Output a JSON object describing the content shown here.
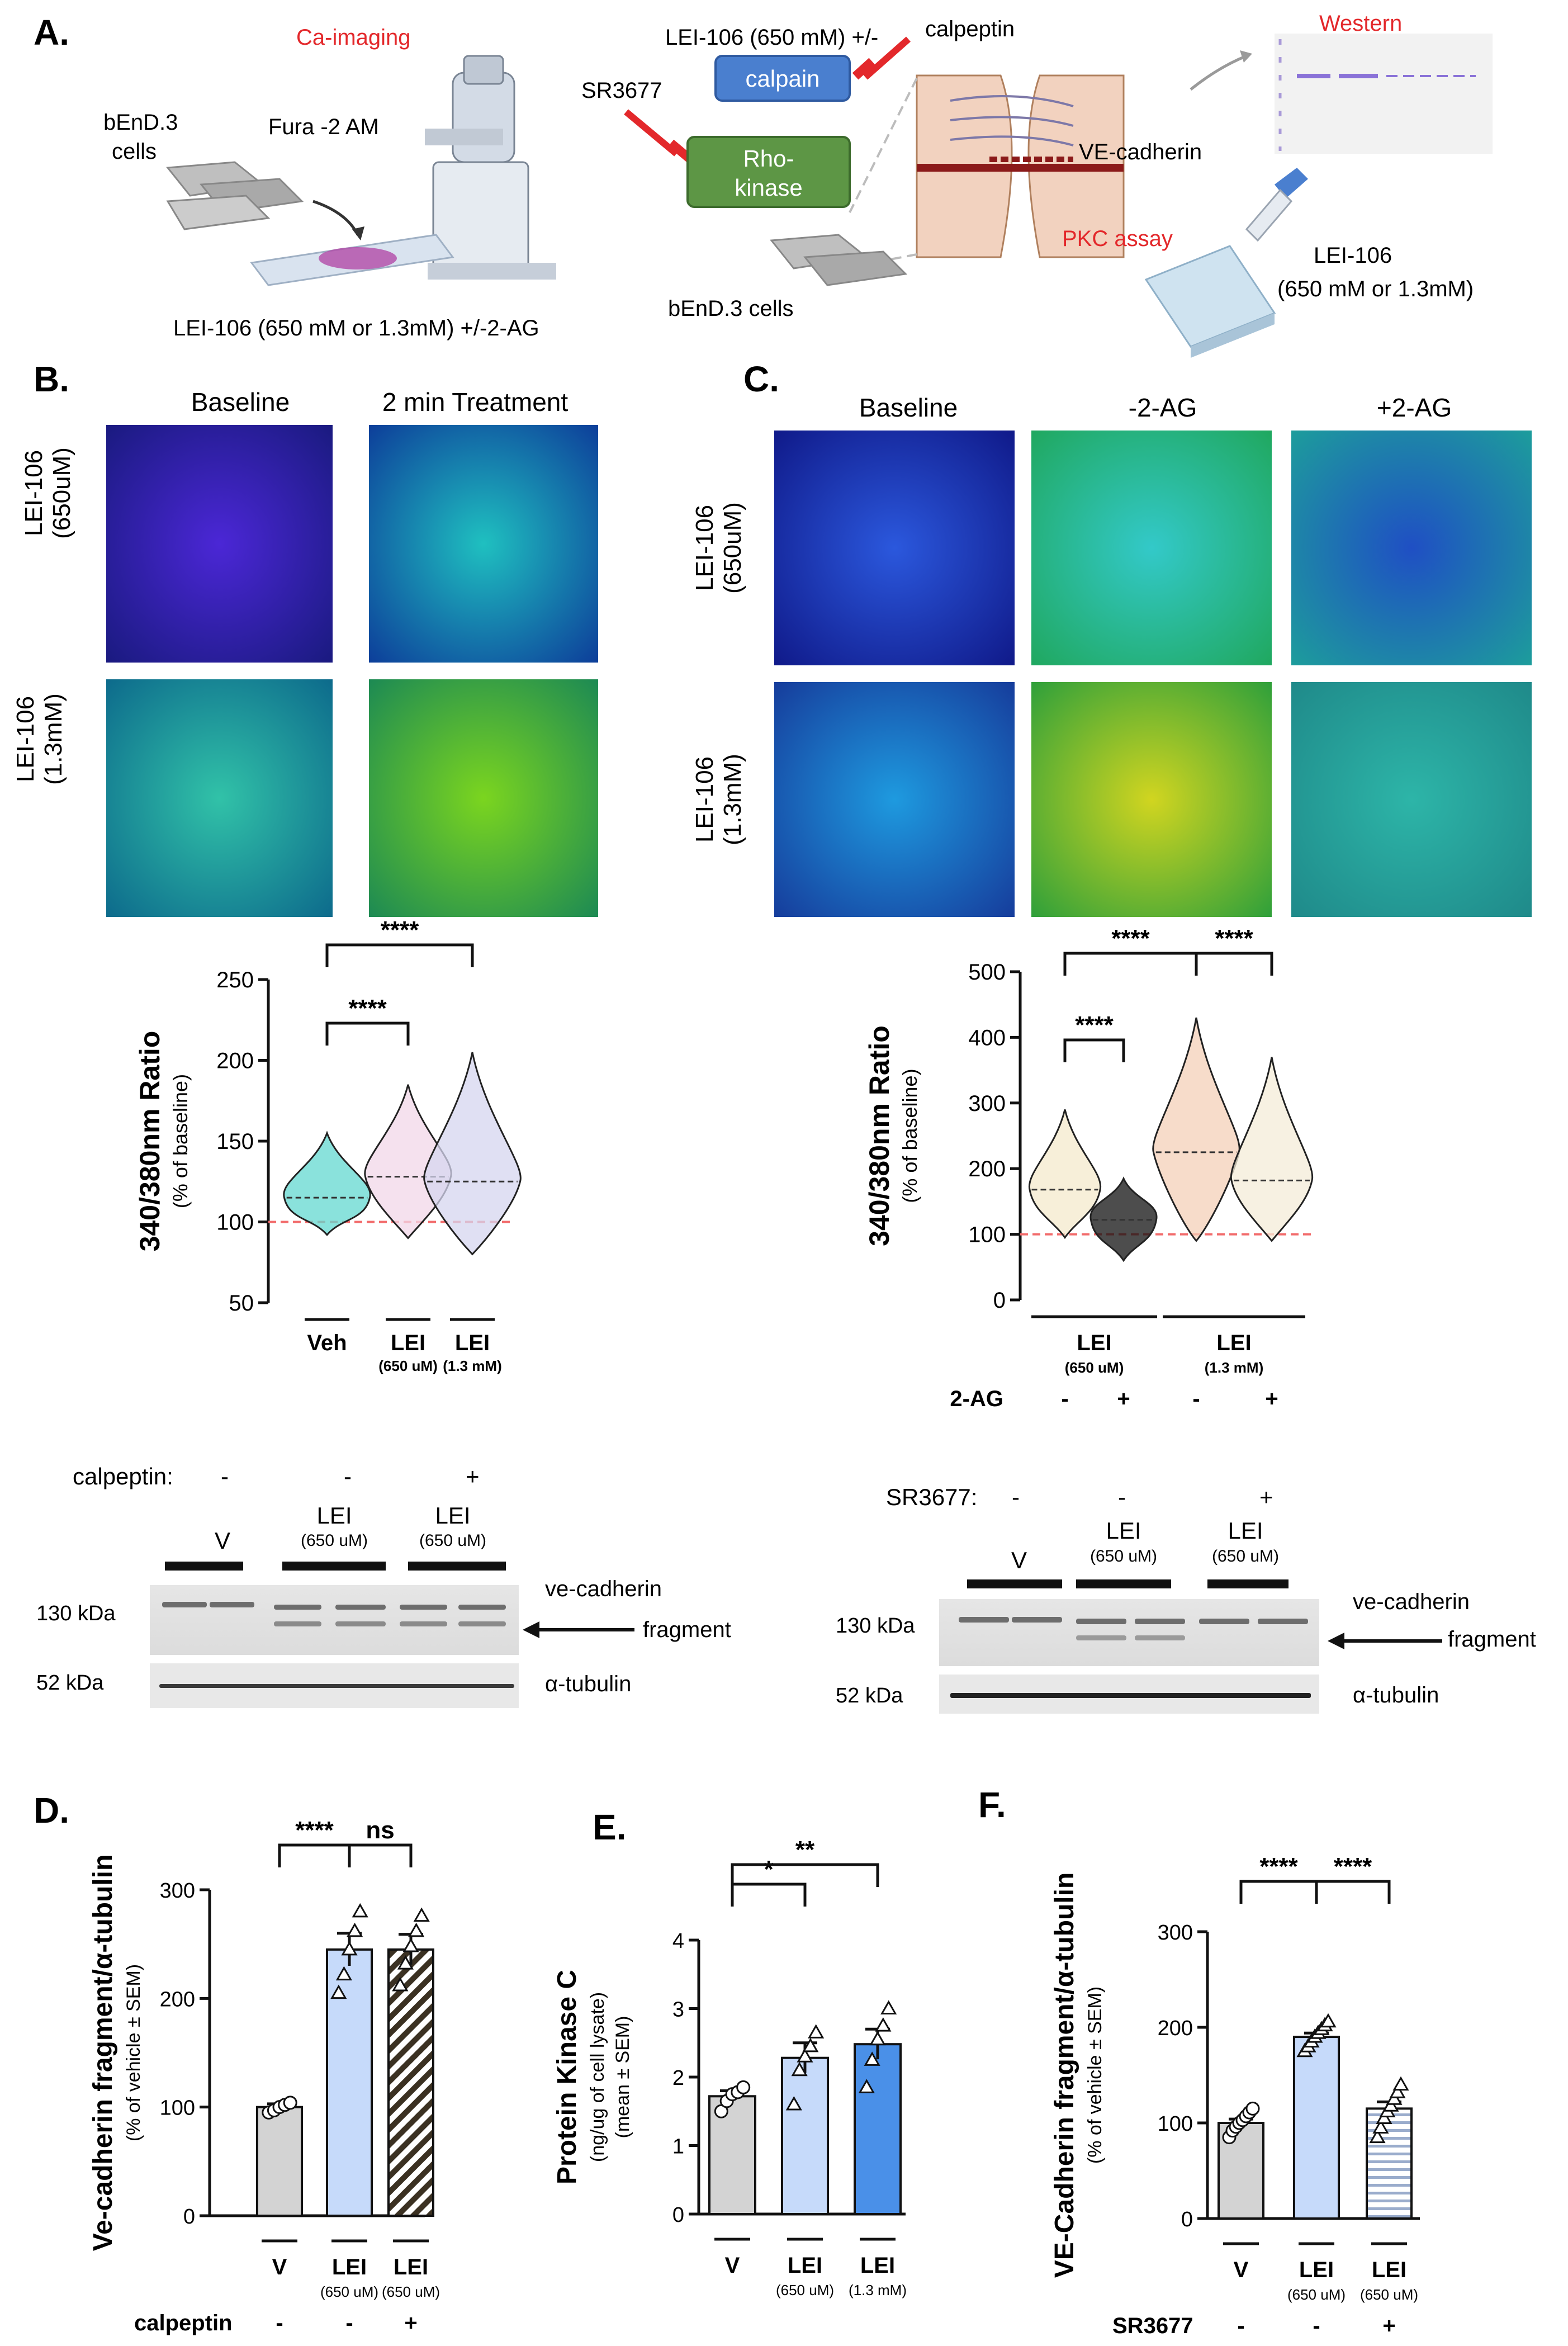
{
  "panelA": {
    "letter": "A.",
    "ca_imaging": "Ca-imaging",
    "bend_cells_l1": "bEnD.3",
    "bend_cells_l2": "cells",
    "fura": "Fura -2 AM",
    "lei_caption_left": "LEI-106 (650  mM or 1.3mM) +/-2-AG",
    "lei_top": "LEI-106 (650  mM) +/-",
    "calpain": "calpain",
    "calpeptin": "calpeptin",
    "sr3677": "SR3677",
    "rho_l1": "Rho-",
    "rho_l2": "kinase",
    "ve_cadherin": "VE-cadherin",
    "western": "Western",
    "pkc_assay": "PKC assay",
    "lei_right_l1": "LEI-106",
    "lei_right_l2": "(650  mM or 1.3mM)",
    "bend_cells_bottom": "bEnD.3 cells"
  },
  "panelB": {
    "letter": "B.",
    "col1": "Baseline",
    "col2": "2 min Treatment",
    "row1_l1": "LEI-106",
    "row1_l2": "(650uM)",
    "row2_l1": "LEI-106",
    "row2_l2": "(1.3mM)"
  },
  "panelC": {
    "letter": "C.",
    "col1": "Baseline",
    "col2": "-2-AG",
    "col3": "+2-AG",
    "row1_l1": "LEI-106",
    "row1_l2": "(650uM)",
    "row2_l1": "LEI-106",
    "row2_l2": "(1.3mM)"
  },
  "blots": {
    "left": {
      "calpeptin_label": "calpeptin:",
      "signs": [
        "-",
        "-",
        "+"
      ],
      "lane_labels": [
        "V",
        "LEI",
        "LEI"
      ],
      "lane_subs": [
        "",
        "(650 uM)",
        "(650 uM)"
      ],
      "kda130": "130 kDa",
      "kda52": "52 kDa",
      "vecad": "ve-cadherin",
      "fragment": "fragment",
      "tubulin": "α-tubulin"
    },
    "right": {
      "sr_label": "SR3677:",
      "signs": [
        "-",
        "-",
        "+"
      ],
      "lane_labels": [
        "V",
        "LEI",
        "LEI"
      ],
      "lane_subs": [
        "",
        "(650 uM)",
        "(650 uM)"
      ],
      "kda130": "130 kDa",
      "kda52": "52 kDa",
      "vecad": "ve-cadherin",
      "fragment": "fragment",
      "tubulin": "α-tubulin"
    }
  },
  "panelD_letter": "D.",
  "panelE_letter": "E.",
  "panelF_letter": "F.",
  "chart_data": [
    {
      "id": "B-violin",
      "type": "violin",
      "ylabel": "340/380nm Ratio",
      "ylabel_sub": "(% of baseline)",
      "ylim": [
        50,
        250
      ],
      "yticks": [
        50,
        100,
        150,
        200,
        250
      ],
      "categories": [
        "Veh",
        "LEI",
        "LEI"
      ],
      "category_subs": [
        "",
        "(650 uM)",
        "(1.3 mM)"
      ],
      "medians": [
        115,
        128,
        125
      ],
      "ranges": [
        [
          92,
          155
        ],
        [
          90,
          185
        ],
        [
          80,
          205
        ]
      ],
      "baseline": 100,
      "significance": [
        {
          "from": 0,
          "to": 1,
          "label": "****"
        },
        {
          "from": 0,
          "to": 2,
          "label": "****"
        }
      ]
    },
    {
      "id": "C-violin",
      "type": "violin",
      "ylabel": "340/380nm Ratio",
      "ylabel_sub": "(% of baseline)",
      "ylim": [
        0,
        500
      ],
      "yticks": [
        0,
        100,
        200,
        300,
        400,
        500
      ],
      "groups": [
        "LEI",
        "LEI"
      ],
      "group_subs": [
        "(650 uM)",
        "(1.3 mM)"
      ],
      "factor_label": "2-AG",
      "factor_signs": [
        "-",
        "+",
        "-",
        "+"
      ],
      "medians": [
        168,
        122,
        225,
        182
      ],
      "ranges": [
        [
          95,
          290
        ],
        [
          60,
          185
        ],
        [
          90,
          430
        ],
        [
          90,
          370
        ]
      ],
      "baseline": 100,
      "significance": [
        {
          "from": 0,
          "to": 1,
          "label": "****"
        },
        {
          "from": 0,
          "to": 2,
          "label": "****"
        },
        {
          "from": 2,
          "to": 3,
          "label": "****"
        }
      ]
    },
    {
      "id": "D-bar",
      "type": "bar",
      "ylabel": "Ve-cadherin fragment/α-tubulin",
      "ylabel_sub": "(% of vehicle ± SEM)",
      "ylim": [
        0,
        300
      ],
      "yticks": [
        0,
        100,
        200,
        300
      ],
      "categories": [
        "V",
        "LEI",
        "LEI"
      ],
      "category_subs": [
        "",
        "(650 uM)",
        "(650 uM)"
      ],
      "values": [
        100,
        245,
        245
      ],
      "sem": [
        3,
        15,
        14
      ],
      "points": [
        [
          95,
          97,
          100,
          102,
          104
        ],
        [
          205,
          222,
          245,
          262,
          280
        ],
        [
          212,
          232,
          248,
          262,
          276
        ]
      ],
      "factor_label": "calpeptin",
      "factor_signs": [
        "-",
        "-",
        "+"
      ],
      "significance": [
        {
          "from": 0,
          "to": 1,
          "label": "****"
        },
        {
          "from": 1,
          "to": 2,
          "label": "ns"
        }
      ]
    },
    {
      "id": "E-bar",
      "type": "bar",
      "ylabel": "Protein Kinase C",
      "ylabel_sub1": "(ng/ug of cell lysate)",
      "ylabel_sub2": "(mean ± SEM)",
      "ylim": [
        0,
        4
      ],
      "yticks": [
        0,
        1,
        2,
        3,
        4
      ],
      "categories": [
        "V",
        "LEI",
        "LEI"
      ],
      "category_subs": [
        "",
        "(650 uM)",
        "(1.3 mM)"
      ],
      "values": [
        1.72,
        2.28,
        2.48
      ],
      "sem": [
        0.08,
        0.22,
        0.22
      ],
      "points": [
        [
          1.5,
          1.65,
          1.75,
          1.78,
          1.85
        ],
        [
          1.6,
          2.1,
          2.3,
          2.45,
          2.65
        ],
        [
          1.85,
          2.25,
          2.55,
          2.75,
          3.0
        ]
      ],
      "significance": [
        {
          "from": 0,
          "to": 1,
          "label": "*"
        },
        {
          "from": 0,
          "to": 2,
          "label": "**"
        }
      ]
    },
    {
      "id": "F-bar",
      "type": "bar",
      "ylabel": "VE-Cadherin fragment/α-tubulin",
      "ylabel_sub": "(% of vehicle ± SEM)",
      "ylim": [
        0,
        300
      ],
      "yticks": [
        0,
        100,
        200,
        300
      ],
      "categories": [
        "V",
        "LEI",
        "LEI"
      ],
      "category_subs": [
        "",
        "(650 uM)",
        "(650 uM)"
      ],
      "values": [
        100,
        190,
        115
      ],
      "sem": [
        4,
        4,
        7
      ],
      "points": [
        [
          85,
          92,
          96,
          100,
          103,
          107,
          111,
          115
        ],
        [
          175,
          180,
          185,
          190,
          194,
          198,
          202,
          206
        ],
        [
          85,
          95,
          105,
          112,
          118,
          125,
          132,
          140
        ]
      ],
      "factor_label": "SR3677",
      "factor_signs": [
        "-",
        "-",
        "+"
      ],
      "significance": [
        {
          "from": 0,
          "to": 1,
          "label": "****"
        },
        {
          "from": 1,
          "to": 2,
          "label": "****"
        }
      ]
    }
  ]
}
